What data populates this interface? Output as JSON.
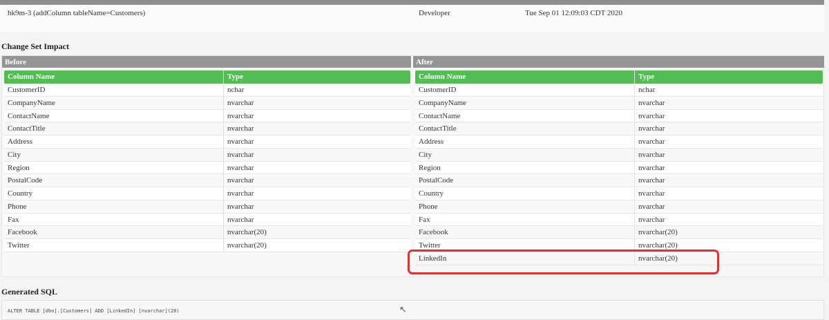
{
  "changeset": {
    "id": "hk9m-3 (addColumn tableName=Customers)",
    "author": "Developer",
    "date": "Tue Sep 01 12:09:03 CDT 2020"
  },
  "impact": {
    "title": "Change Set Impact",
    "before_label": "Before",
    "after_label": "After",
    "col_name": "Column Name",
    "col_type": "Type",
    "before": [
      [
        "CustomerID",
        "nchar"
      ],
      [
        "CompanyName",
        "nvarchar"
      ],
      [
        "ContactName",
        "nvarchar"
      ],
      [
        "ContactTitle",
        "nvarchar"
      ],
      [
        "Address",
        "nvarchar"
      ],
      [
        "City",
        "nvarchar"
      ],
      [
        "Region",
        "nvarchar"
      ],
      [
        "PostalCode",
        "nvarchar"
      ],
      [
        "Country",
        "nvarchar"
      ],
      [
        "Phone",
        "nvarchar"
      ],
      [
        "Fax",
        "nvarchar"
      ],
      [
        "Facebook",
        "nvarchar(20)"
      ],
      [
        "Twitter",
        "nvarchar(20)"
      ]
    ],
    "after": [
      [
        "CustomerID",
        "nchar"
      ],
      [
        "CompanyName",
        "nvarchar"
      ],
      [
        "ContactName",
        "nvarchar"
      ],
      [
        "ContactTitle",
        "nvarchar"
      ],
      [
        "Address",
        "nvarchar"
      ],
      [
        "City",
        "nvarchar"
      ],
      [
        "Region",
        "nvarchar"
      ],
      [
        "PostalCode",
        "nvarchar"
      ],
      [
        "Country",
        "nvarchar"
      ],
      [
        "Phone",
        "nvarchar"
      ],
      [
        "Fax",
        "nvarchar"
      ],
      [
        "Facebook",
        "nvarchar(20)"
      ],
      [
        "Twitter",
        "nvarchar(20)"
      ],
      [
        "LinkedIn",
        "nvarchar(20)"
      ]
    ]
  },
  "sql": {
    "title": "Generated SQL",
    "statement": "ALTER TABLE [dbo].[Customers] ADD [LinkedIn] [nvarchar](20)"
  },
  "colors": {
    "green": "#55bb55",
    "gray": "#959594",
    "highlight": "#e03030"
  }
}
